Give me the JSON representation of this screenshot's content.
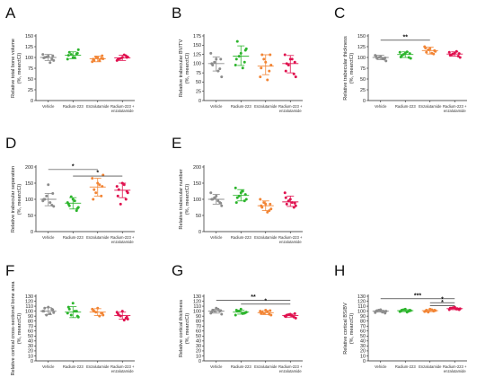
{
  "colors": {
    "Vehicle": "#8c8c8c",
    "Radium-223": "#2db52d",
    "Enzalutamide": "#f28535",
    "Radium-223 + enzalutamide": "#e0114f"
  },
  "chart_data": [
    {
      "type": "scatter",
      "panel": "A",
      "ylabel": [
        "Relative total bone volume",
        "(%, mean±CI)"
      ],
      "ylim": [
        0,
        150
      ],
      "yticks": [
        0,
        25,
        50,
        75,
        100,
        125,
        150
      ],
      "categories": [
        "Vehicle",
        "Radium-223",
        "Enzalutamide",
        "Radium-223 + enzalutamide"
      ],
      "series": [
        {
          "name": "Vehicle",
          "mean": 100,
          "ci": [
            93,
            107
          ],
          "points": [
            103,
            100,
            96,
            107,
            93,
            101,
            88,
            99,
            104
          ]
        },
        {
          "name": "Radium-223",
          "mean": 105,
          "ci": [
            97,
            113
          ],
          "points": [
            100,
            112,
            108,
            96,
            118,
            107,
            100,
            105,
            110
          ]
        },
        {
          "name": "Enzalutamide",
          "mean": 97,
          "ci": [
            90,
            103
          ],
          "points": [
            100,
            93,
            98,
            90,
            97,
            101,
            93,
            96,
            104
          ]
        },
        {
          "name": "Radium-223 + enzalutamide",
          "mean": 99,
          "ci": [
            93,
            105
          ],
          "points": [
            100,
            96,
            104,
            93,
            101,
            98,
            106,
            95,
            100
          ]
        }
      ],
      "significance": []
    },
    {
      "type": "scatter",
      "panel": "B",
      "ylabel": [
        "Relative trabecular BV/TV",
        "(%, mean±CI)"
      ],
      "ylim": [
        0,
        175
      ],
      "yticks": [
        0,
        25,
        50,
        75,
        100,
        125,
        150,
        175
      ],
      "categories": [
        "Vehicle",
        "Radium-223",
        "Enzalutamide",
        "Radium-223 + enzalutamide"
      ],
      "series": [
        {
          "name": "Vehicle",
          "mean": 100,
          "ci": [
            80,
            118
          ],
          "points": [
            112,
            96,
            86,
            128,
            64,
            104,
            80,
            100,
            112
          ]
        },
        {
          "name": "Radium-223",
          "mean": 120,
          "ci": [
            95,
            148
          ],
          "points": [
            128,
            160,
            104,
            96,
            140,
            120,
            88,
            112,
            136
          ]
        },
        {
          "name": "Enzalutamide",
          "mean": 93,
          "ci": [
            70,
            124
          ],
          "points": [
            104,
            124,
            80,
            64,
            96,
            112,
            56,
            88,
            124
          ]
        },
        {
          "name": "Radium-223 + enzalutamide",
          "mean": 100,
          "ci": [
            75,
            122
          ],
          "points": [
            112,
            100,
            72,
            124,
            64,
            96,
            112,
            80,
            104
          ]
        }
      ],
      "significance": []
    },
    {
      "type": "scatter",
      "panel": "C",
      "ylabel": [
        "Relative trabecular thickness",
        "(%, mean±CI)"
      ],
      "ylim": [
        0,
        150
      ],
      "yticks": [
        0,
        25,
        50,
        75,
        100,
        125,
        150
      ],
      "categories": [
        "Vehicle",
        "Radium-223",
        "Enzalutamide",
        "Radium-223 + enzalutamide"
      ],
      "series": [
        {
          "name": "Vehicle",
          "mean": 100,
          "ci": [
            95,
            105
          ],
          "points": [
            102,
            98,
            96,
            105,
            92,
            100,
            97,
            103,
            99
          ]
        },
        {
          "name": "Radium-223",
          "mean": 107,
          "ci": [
            100,
            113
          ],
          "points": [
            110,
            104,
            100,
            112,
            98,
            107,
            113,
            101,
            109
          ]
        },
        {
          "name": "Enzalutamide",
          "mean": 116,
          "ci": [
            108,
            124
          ],
          "points": [
            120,
            112,
            108,
            125,
            114,
            118,
            110,
            122,
            116
          ]
        },
        {
          "name": "Radium-223 + enzalutamide",
          "mean": 108,
          "ci": [
            103,
            113
          ],
          "points": [
            110,
            106,
            103,
            112,
            100,
            108,
            114,
            105,
            109
          ]
        }
      ],
      "significance": [
        {
          "from": 0,
          "to": 2,
          "label": "**",
          "y": 140
        }
      ]
    },
    {
      "type": "scatter",
      "panel": "D",
      "ylabel": [
        "Relative trabecular separation",
        "(%, mean±CI)"
      ],
      "ylim": [
        0,
        200
      ],
      "yticks": [
        0,
        50,
        100,
        150,
        200
      ],
      "categories": [
        "Vehicle",
        "Radium-223",
        "Enzalutamide",
        "Radium-223 + enzalutamide"
      ],
      "series": [
        {
          "name": "Vehicle",
          "mean": 100,
          "ci": [
            80,
            118
          ],
          "points": [
            145,
            100,
            82,
            95,
            78,
            110,
            90,
            100,
            118
          ]
        },
        {
          "name": "Radium-223",
          "mean": 88,
          "ci": [
            70,
            105
          ],
          "points": [
            100,
            80,
            65,
            90,
            75,
            108,
            95,
            85,
            72
          ]
        },
        {
          "name": "Enzalutamide",
          "mean": 138,
          "ci": [
            110,
            165
          ],
          "points": [
            150,
            130,
            110,
            165,
            175,
            120,
            145,
            100,
            140
          ]
        },
        {
          "name": "Radium-223 + enzalutamide",
          "mean": 128,
          "ci": [
            105,
            150
          ],
          "points": [
            150,
            130,
            100,
            140,
            120,
            85,
            145,
            110,
            125
          ]
        }
      ],
      "significance": [
        {
          "from": 0,
          "to": 2,
          "label": "*",
          "y": 192
        },
        {
          "from": 1,
          "to": 3,
          "label": "*",
          "y": 172
        }
      ]
    },
    {
      "type": "scatter",
      "panel": "E",
      "ylabel": [
        "Relative trabecular number",
        "(%, mean±CI)"
      ],
      "ylim": [
        0,
        200
      ],
      "yticks": [
        0,
        50,
        100,
        150,
        200
      ],
      "categories": [
        "Vehicle",
        "Radium-223",
        "Enzalutamide",
        "Radium-223 + enzalutamide"
      ],
      "series": [
        {
          "name": "Vehicle",
          "mean": 100,
          "ci": [
            85,
            115
          ],
          "points": [
            110,
            100,
            90,
            120,
            80,
            105,
            95,
            100,
            88
          ]
        },
        {
          "name": "Radium-223",
          "mean": 112,
          "ci": [
            95,
            130
          ],
          "points": [
            120,
            105,
            95,
            135,
            100,
            110,
            125,
            90,
            115
          ]
        },
        {
          "name": "Enzalutamide",
          "mean": 80,
          "ci": [
            65,
            95
          ],
          "points": [
            85,
            75,
            65,
            100,
            70,
            90,
            60,
            80,
            85
          ]
        },
        {
          "name": "Radium-223 + enzalutamide",
          "mean": 92,
          "ci": [
            78,
            110
          ],
          "points": [
            100,
            85,
            75,
            120,
            80,
            95,
            90,
            105,
            88
          ]
        }
      ],
      "significance": []
    },
    {
      "type": "scatter",
      "panel": "F",
      "ylabel": [
        "Relative cortical cross-sectional bone area",
        "(%, mean±CI)"
      ],
      "ylim": [
        0,
        130
      ],
      "yticks": [
        0,
        10,
        20,
        30,
        40,
        50,
        60,
        70,
        80,
        90,
        100,
        110,
        120,
        130
      ],
      "categories": [
        "Vehicle",
        "Radium-223",
        "Enzalutamide",
        "Radium-223 + enzalutamide"
      ],
      "series": [
        {
          "name": "Vehicle",
          "mean": 100,
          "ci": [
            93,
            107
          ],
          "points": [
            108,
            106,
            104,
            100,
            97,
            92,
            95,
            100,
            103
          ]
        },
        {
          "name": "Radium-223",
          "mean": 98,
          "ci": [
            87,
            109
          ],
          "points": [
            116,
            104,
            100,
            96,
            88,
            92,
            100,
            108,
            90
          ]
        },
        {
          "name": "Enzalutamide",
          "mean": 98,
          "ci": [
            91,
            105
          ],
          "points": [
            106,
            100,
            96,
            104,
            92,
            98,
            90,
            102,
            96
          ]
        },
        {
          "name": "Radium-223 + enzalutamide",
          "mean": 91,
          "ci": [
            84,
            98
          ],
          "points": [
            100,
            92,
            86,
            98,
            84,
            90,
            82,
            95,
            88
          ]
        }
      ],
      "significance": []
    },
    {
      "type": "scatter",
      "panel": "G",
      "ylabel": [
        "Relative cortical thickness",
        "(%, mean±CI)"
      ],
      "ylim": [
        0,
        130
      ],
      "yticks": [
        0,
        10,
        20,
        30,
        40,
        50,
        60,
        70,
        80,
        90,
        100,
        110,
        120,
        130
      ],
      "categories": [
        "Vehicle",
        "Radium-223",
        "Enzalutamide",
        "Radium-223 + enzalutamide"
      ],
      "series": [
        {
          "name": "Vehicle",
          "mean": 100,
          "ci": [
            96,
            104
          ],
          "points": [
            106,
            102,
            100,
            96,
            94,
            100,
            104,
            98,
            101
          ]
        },
        {
          "name": "Radium-223",
          "mean": 98,
          "ci": [
            94,
            102
          ],
          "points": [
            104,
            100,
            96,
            92,
            98,
            100,
            95,
            102,
            97
          ]
        },
        {
          "name": "Enzalutamide",
          "mean": 97,
          "ci": [
            93,
            101
          ],
          "points": [
            102,
            98,
            94,
            100,
            92,
            96,
            99,
            95,
            101
          ]
        },
        {
          "name": "Radium-223 + enzalutamide",
          "mean": 91,
          "ci": [
            88,
            94
          ],
          "points": [
            94,
            92,
            88,
            90,
            86,
            93,
            91,
            89,
            95
          ]
        }
      ],
      "significance": [
        {
          "from": 0,
          "to": 3,
          "label": "**",
          "y": 122
        },
        {
          "from": 1,
          "to": 3,
          "label": "*",
          "y": 114
        }
      ]
    },
    {
      "type": "scatter",
      "panel": "H",
      "ylabel": [
        "Relative cortical BS/BV",
        "(%, mean±CI)"
      ],
      "ylim": [
        0,
        130
      ],
      "yticks": [
        0,
        10,
        20,
        30,
        40,
        50,
        60,
        70,
        80,
        90,
        100,
        110,
        120,
        130
      ],
      "categories": [
        "Vehicle",
        "Radium-223",
        "Enzalutamide",
        "Radium-223 + enzalutamide"
      ],
      "series": [
        {
          "name": "Vehicle",
          "mean": 100,
          "ci": [
            98,
            102
          ],
          "points": [
            103,
            101,
            99,
            97,
            100,
            102,
            98,
            100,
            96
          ]
        },
        {
          "name": "Radium-223",
          "mean": 101,
          "ci": [
            99,
            103
          ],
          "points": [
            104,
            102,
            100,
            99,
            101,
            103,
            98,
            100,
            102
          ]
        },
        {
          "name": "Enzalutamide",
          "mean": 101,
          "ci": [
            99,
            103
          ],
          "points": [
            104,
            102,
            100,
            99,
            101,
            98,
            103,
            100,
            102
          ]
        },
        {
          "name": "Radium-223 + enzalutamide",
          "mean": 105,
          "ci": [
            103,
            107
          ],
          "points": [
            108,
            106,
            104,
            103,
            105,
            107,
            104,
            106,
            103
          ]
        }
      ],
      "significance": [
        {
          "from": 0,
          "to": 3,
          "label": "***",
          "y": 125
        },
        {
          "from": 2,
          "to": 3,
          "label": "*",
          "y": 117
        },
        {
          "from": 2,
          "to": 3,
          "label": "*",
          "y": 111
        }
      ]
    }
  ]
}
